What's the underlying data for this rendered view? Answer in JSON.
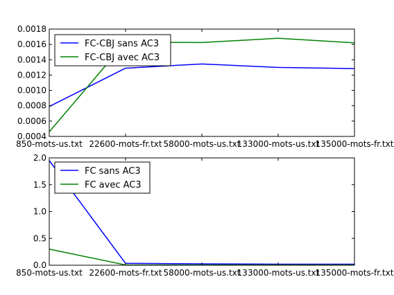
{
  "chart_data": [
    {
      "type": "line",
      "categories": [
        "850-mots-us.txt",
        "22600-mots-fr.txt",
        "58000-mots-us.txt",
        "133000-mots-us.txt",
        "135000-mots-fr.txt"
      ],
      "yticks": [
        "0.0004",
        "0.0006",
        "0.0008",
        "0.0010",
        "0.0012",
        "0.0014",
        "0.0016",
        "0.0018"
      ],
      "ylim": [
        0.0004,
        0.0018
      ],
      "grid": false,
      "legend_position": "top-left",
      "series": [
        {
          "name": "FC-CBJ sans AC3",
          "color": "#0000ff",
          "values": [
            0.00079,
            0.00129,
            0.001345,
            0.0013,
            0.001285
          ]
        },
        {
          "name": "FC-CBJ avec AC3",
          "color": "#008000",
          "values": [
            0.00046,
            0.00163,
            0.001625,
            0.00168,
            0.00162
          ]
        }
      ]
    },
    {
      "type": "line",
      "categories": [
        "850-mots-us.txt",
        "22600-mots-fr.txt",
        "58000-mots-us.txt",
        "133000-mots-us.txt",
        "135000-mots-fr.txt"
      ],
      "yticks": [
        "0.0",
        "0.5",
        "1.0",
        "1.5",
        "2.0"
      ],
      "ylim": [
        0,
        2.0
      ],
      "grid": false,
      "legend_position": "top-left",
      "series": [
        {
          "name": "FC sans AC3",
          "color": "#0000ff",
          "values": [
            1.95,
            0.035,
            0.025,
            0.02,
            0.02
          ]
        },
        {
          "name": "FC avec AC3",
          "color": "#008000",
          "values": [
            0.3,
            0.005,
            0.005,
            0.005,
            0.005
          ]
        }
      ]
    }
  ]
}
